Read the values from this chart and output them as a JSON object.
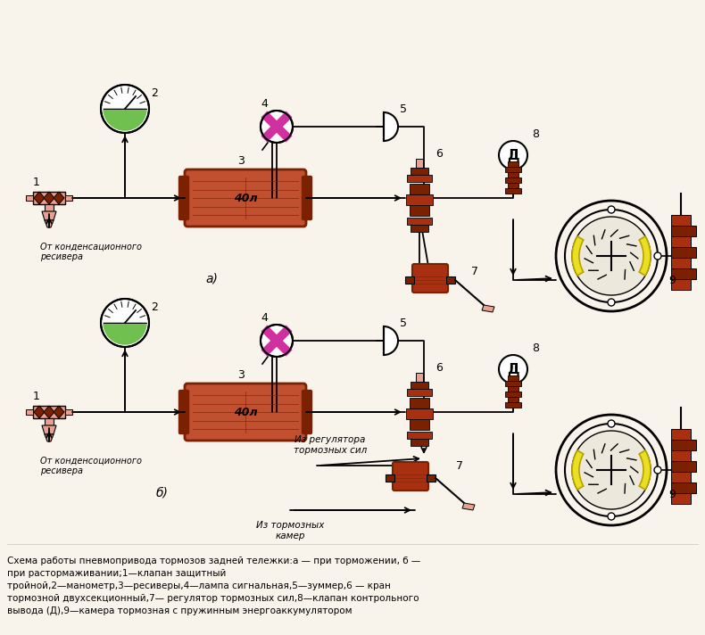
{
  "bg_color": "#f8f4ec",
  "caption_line1": "Схема работы пневмопривода тормозов задней тележки:а — при торможении, б —",
  "caption_line2": "при растормаживании;1—клапан защитный",
  "caption_line3": "тройной,2—манометр,3—ресиверы,4—лампа сигнальная,5—зуммер,6 — кран",
  "caption_line4": "тормозной двухсекционный,7— регулятор тормозных сил,8—клапан контрольного",
  "caption_line5": "вывода (Д),9—камера тормозная с пружинным энергоаккумулятором",
  "dark_red": "#7B2000",
  "medium_red": "#A83010",
  "tex_red": "#C05030",
  "pink_body": "#E8A090",
  "green_fill": "#70C050",
  "magenta_fill": "#D030A0",
  "yellow_fill": "#E8E020",
  "line_color": "#000000",
  "label_color": "#111111"
}
